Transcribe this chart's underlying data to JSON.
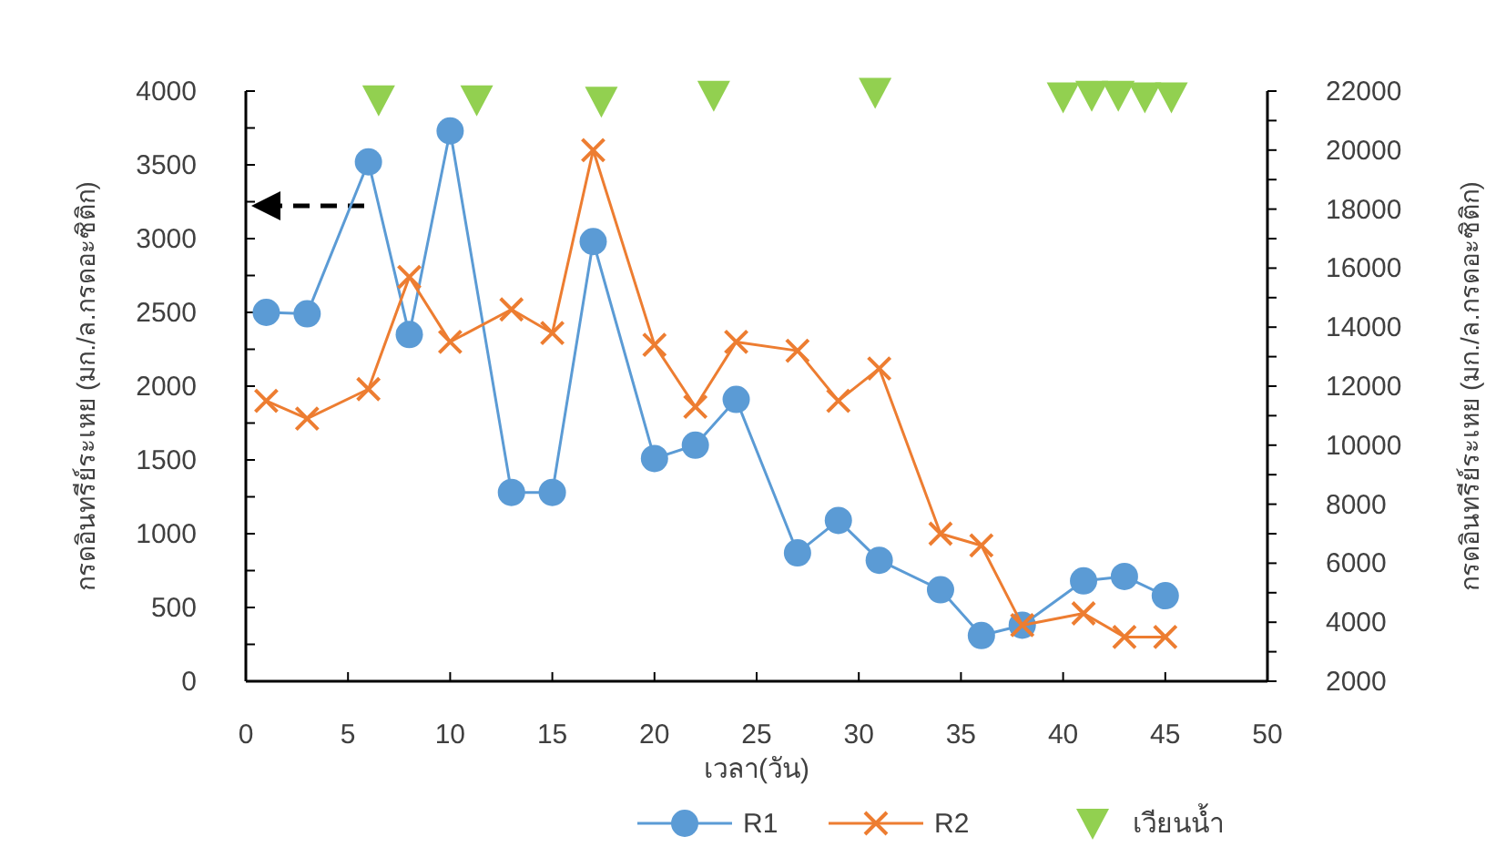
{
  "chart_data": {
    "type": "line",
    "xlabel": "เวลา(วัน)",
    "ylabel": "กรดอินทรีย์ระเหย (มก./ล.กรดอะซิติก)",
    "y2label": "กรดอินทรีย์ระเหย (มก./ล.กรดอะซิติก)",
    "xlim": [
      0,
      50
    ],
    "xticks": [
      0,
      5,
      10,
      15,
      20,
      25,
      30,
      35,
      40,
      45,
      50
    ],
    "ylim": [
      0,
      4000
    ],
    "yticks": [
      0,
      {
        "value": 250,
        "label": null
      },
      500,
      {
        "value": 750,
        "label": null
      },
      1000,
      {
        "value": 1250,
        "label": null
      },
      1500,
      {
        "value": 1750,
        "label": null
      },
      2000,
      {
        "value": 2250,
        "label": null
      },
      2500,
      {
        "value": 2750,
        "label": null
      },
      3000,
      {
        "value": 3250,
        "label": null
      },
      3500,
      {
        "value": 3750,
        "label": null
      },
      4000
    ],
    "y2lim": [
      2000,
      22000
    ],
    "y2ticks": [
      2000,
      {
        "value": 3000,
        "label": null
      },
      4000,
      {
        "value": 5000,
        "label": null
      },
      6000,
      {
        "value": 7000,
        "label": null
      },
      8000,
      {
        "value": 9000,
        "label": null
      },
      10000,
      {
        "value": 11000,
        "label": null
      },
      12000,
      {
        "value": 13000,
        "label": null
      },
      14000,
      {
        "value": 15000,
        "label": null
      },
      16000,
      {
        "value": 17000,
        "label": null
      },
      18000,
      {
        "value": 19000,
        "label": null
      },
      20000,
      {
        "value": 21000,
        "label": null
      },
      22000
    ],
    "grid": false,
    "legend": "bottom",
    "series": [
      {
        "name": "R1",
        "color": "#5b9bd5",
        "marker": "circle",
        "x": [
          1,
          3,
          6,
          8,
          10,
          13,
          15,
          17,
          20,
          22,
          24,
          27,
          29,
          31,
          34,
          36,
          38,
          41,
          43,
          45
        ],
        "values": [
          2500,
          2490,
          3520,
          2350,
          3730,
          1280,
          1280,
          2980,
          1510,
          1600,
          1910,
          870,
          1090,
          820,
          620,
          310,
          380,
          680,
          710,
          580
        ]
      },
      {
        "name": "R2",
        "color": "#ed7d31",
        "marker": "cross",
        "axis": "y2",
        "x": [
          1,
          3,
          6,
          8,
          10,
          13,
          15,
          17,
          20,
          22,
          24,
          27,
          29,
          31,
          34,
          36,
          38,
          41,
          43,
          45
        ],
        "values": [
          11500,
          10900,
          11900,
          15700,
          13500,
          14600,
          13800,
          20000,
          13400,
          11300,
          13500,
          13200,
          11500,
          12600,
          7000,
          6600,
          3900,
          4300,
          3500,
          3500
        ]
      },
      {
        "name": "เวียนน้ำ",
        "type": "scatter",
        "color": "#92d050",
        "marker": "triangle",
        "x": [
          6.5,
          11.3,
          17.4,
          22.9,
          30.8,
          40,
          41.4,
          42.7,
          44,
          45.3
        ],
        "values": [
          3940,
          3940,
          3930,
          3970,
          3990,
          3960,
          3970,
          3970,
          3960,
          3960
        ]
      }
    ]
  }
}
